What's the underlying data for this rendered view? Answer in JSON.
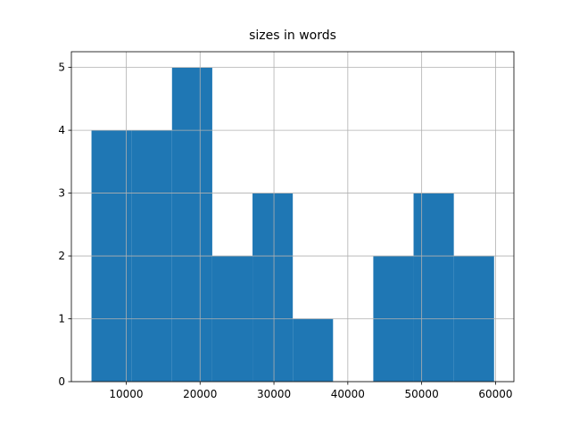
{
  "chart_data": {
    "type": "histogram",
    "title": "sizes in words",
    "bins": [
      5300,
      10750,
      16200,
      21650,
      27100,
      32550,
      38000,
      43450,
      48900,
      54350,
      59800
    ],
    "values": [
      4,
      4,
      5,
      2,
      3,
      1,
      0,
      2,
      3,
      2
    ],
    "color": "#1f77b4",
    "xlim": [
      2576,
      62484
    ],
    "xticks": [
      10000,
      20000,
      30000,
      40000,
      50000,
      60000
    ],
    "ylim": [
      0,
      5.25
    ],
    "yticks": [
      0,
      1,
      2,
      3,
      4,
      5
    ],
    "grid": true
  }
}
